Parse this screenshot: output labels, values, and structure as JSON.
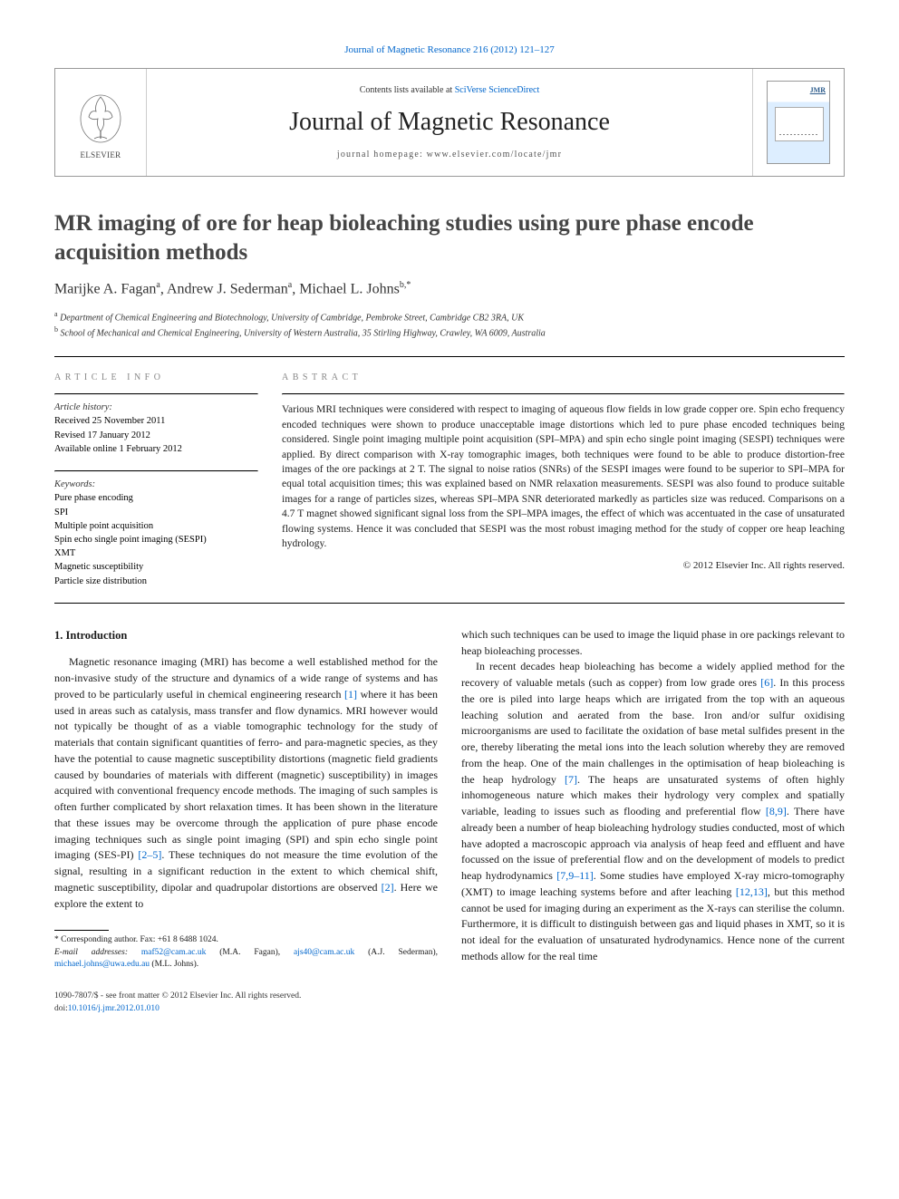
{
  "journal_link_top": "Journal of Magnetic Resonance 216 (2012) 121–127",
  "header": {
    "contents_prefix": "Contents lists available at ",
    "contents_link": "SciVerse ScienceDirect",
    "journal_name": "Journal of Magnetic Resonance",
    "homepage_label": "journal homepage: www.elsevier.com/locate/jmr",
    "publisher": "ELSEVIER",
    "cover_abbrev": "JMR"
  },
  "article": {
    "title": "MR imaging of ore for heap bioleaching studies using pure phase encode acquisition methods",
    "authors_html": "Marijke A. Fagan",
    "author1": "Marijke A. Fagan",
    "author1_aff": "a",
    "author2": "Andrew J. Sederman",
    "author2_aff": "a",
    "author3": "Michael L. Johns",
    "author3_aff": "b,*",
    "affiliations": {
      "a": "Department of Chemical Engineering and Biotechnology, University of Cambridge, Pembroke Street, Cambridge CB2 3RA, UK",
      "b": "School of Mechanical and Chemical Engineering, University of Western Australia, 35 Stirling Highway, Crawley, WA 6009, Australia"
    }
  },
  "info": {
    "heading": "ARTICLE INFO",
    "history_label": "Article history:",
    "received": "Received 25 November 2011",
    "revised": "Revised 17 January 2012",
    "available": "Available online 1 February 2012",
    "keywords_label": "Keywords:",
    "keywords": [
      "Pure phase encoding",
      "SPI",
      "Multiple point acquisition",
      "Spin echo single point imaging (SESPI)",
      "XMT",
      "Magnetic susceptibility",
      "Particle size distribution"
    ]
  },
  "abstract": {
    "heading": "ABSTRACT",
    "text": "Various MRI techniques were considered with respect to imaging of aqueous flow fields in low grade copper ore. Spin echo frequency encoded techniques were shown to produce unacceptable image distortions which led to pure phase encoded techniques being considered. Single point imaging multiple point acquisition (SPI–MPA) and spin echo single point imaging (SESPI) techniques were applied. By direct comparison with X-ray tomographic images, both techniques were found to be able to produce distortion-free images of the ore packings at 2 T. The signal to noise ratios (SNRs) of the SESPI images were found to be superior to SPI–MPA for equal total acquisition times; this was explained based on NMR relaxation measurements. SESPI was also found to produce suitable images for a range of particles sizes, whereas SPI–MPA SNR deteriorated markedly as particles size was reduced. Comparisons on a 4.7 T magnet showed significant signal loss from the SPI–MPA images, the effect of which was accentuated in the case of unsaturated flowing systems. Hence it was concluded that SESPI was the most robust imaging method for the study of copper ore heap leaching hydrology.",
    "copyright": "© 2012 Elsevier Inc. All rights reserved."
  },
  "body": {
    "section1_heading": "1. Introduction",
    "p1": "Magnetic resonance imaging (MRI) has become a well established method for the non-invasive study of the structure and dynamics of a wide range of systems and has proved to be particularly useful in chemical engineering research [1] where it has been used in areas such as catalysis, mass transfer and flow dynamics. MRI however would not typically be thought of as a viable tomographic technology for the study of materials that contain significant quantities of ferro- and para-magnetic species, as they have the potential to cause magnetic susceptibility distortions (magnetic field gradients caused by boundaries of materials with different (magnetic) susceptibility) in images acquired with conventional frequency encode methods. The imaging of such samples is often further complicated by short relaxation times. It has been shown in the literature that these issues may be overcome through the application of pure phase encode imaging techniques such as single point imaging (SPI) and spin echo single point imaging (SES-PI) [2–5]. These techniques do not measure the time evolution of the signal, resulting in a significant reduction in the extent to which chemical shift, magnetic susceptibility, dipolar and quadrupolar distortions are observed [2]. Here we explore the extent to",
    "p2": "which such techniques can be used to image the liquid phase in ore packings relevant to heap bioleaching processes.",
    "p3": "In recent decades heap bioleaching has become a widely applied method for the recovery of valuable metals (such as copper) from low grade ores [6]. In this process the ore is piled into large heaps which are irrigated from the top with an aqueous leaching solution and aerated from the base. Iron and/or sulfur oxidising microorganisms are used to facilitate the oxidation of base metal sulfides present in the ore, thereby liberating the metal ions into the leach solution whereby they are removed from the heap. One of the main challenges in the optimisation of heap bioleaching is the heap hydrology [7]. The heaps are unsaturated systems of often highly inhomogeneous nature which makes their hydrology very complex and spatially variable, leading to issues such as flooding and preferential flow [8,9]. There have already been a number of heap bioleaching hydrology studies conducted, most of which have adopted a macroscopic approach via analysis of heap feed and effluent and have focussed on the issue of preferential flow and on the development of models to predict heap hydrodynamics [7,9–11]. Some studies have employed X-ray micro-tomography (XMT) to image leaching systems before and after leaching [12,13], but this method cannot be used for imaging during an experiment as the X-rays can sterilise the column. Furthermore, it is difficult to distinguish between gas and liquid phases in XMT, so it is not ideal for the evaluation of unsaturated hydrodynamics. Hence none of the current methods allow for the real time"
  },
  "footnotes": {
    "corresponding": "* Corresponding author. Fax: +61 8 6488 1024.",
    "email_label": "E-mail addresses:",
    "email1": "maf52@cam.ac.uk",
    "email1_name": " (M.A. Fagan), ",
    "email2": "ajs40@cam.ac.uk",
    "email2_name": " (A.J. Sederman), ",
    "email3": "michael.johns@uwa.edu.au",
    "email3_name": " (M.L. Johns)."
  },
  "footer": {
    "line1": "1090-7807/$ - see front matter © 2012 Elsevier Inc. All rights reserved.",
    "doi_prefix": "doi:",
    "doi": "10.1016/j.jmr.2012.01.010"
  },
  "colors": {
    "link": "#0066cc",
    "heading_gray": "#888888",
    "text": "#1a1a1a",
    "title_gray": "#454545"
  }
}
